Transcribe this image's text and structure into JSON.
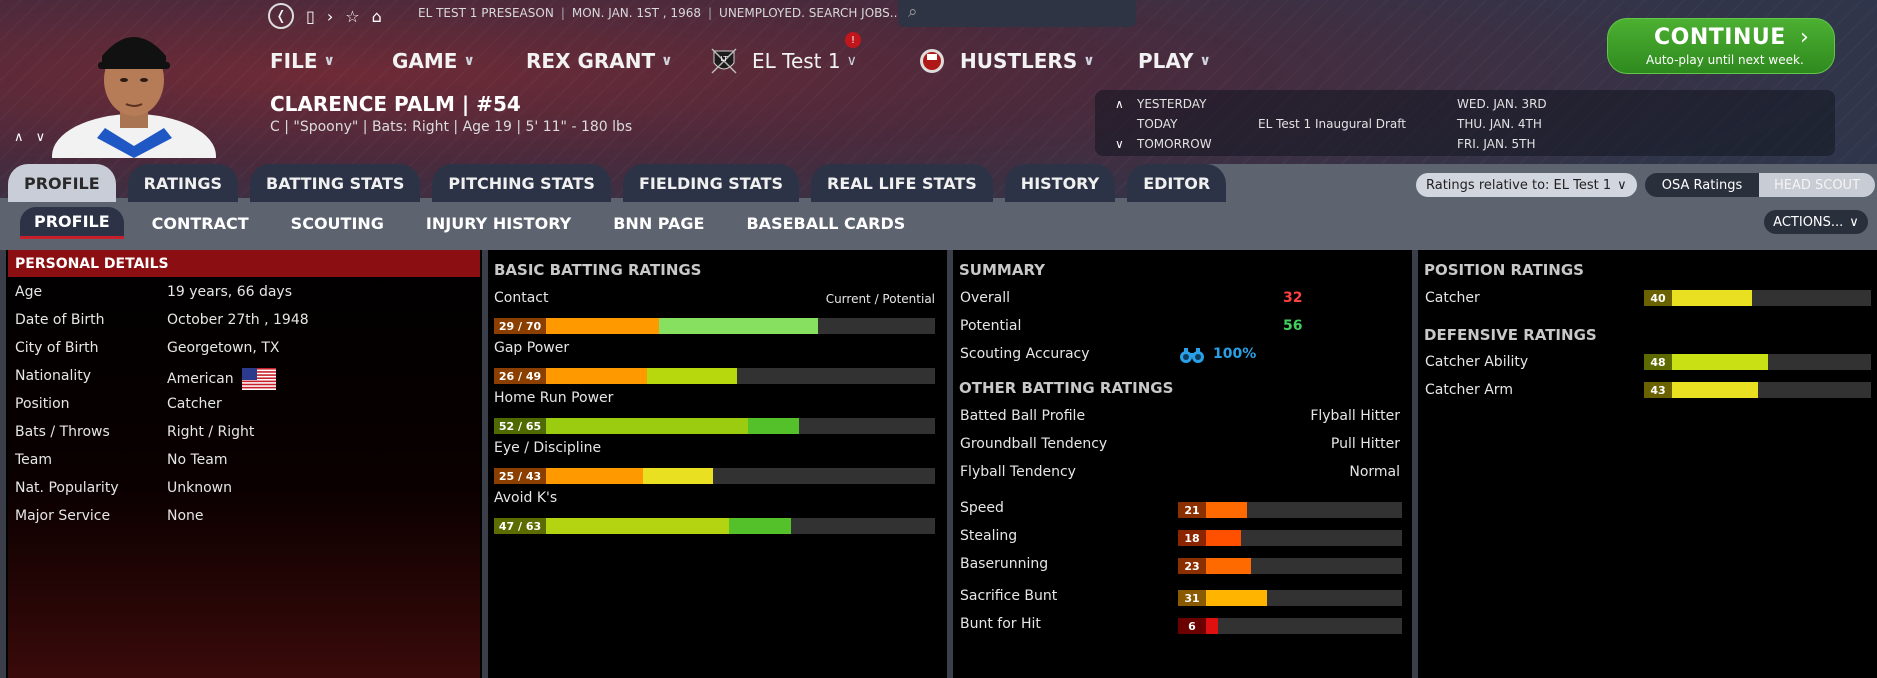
{
  "topbar": {
    "breadcrumb": [
      "EL TEST 1 PRESEASON",
      "MON. JAN. 1ST , 1968",
      "UNEMPLOYED. SEARCH JOBS..."
    ]
  },
  "menu": {
    "file": "FILE",
    "game": "GAME",
    "manager": "REX GRANT",
    "league": "EL Test 1",
    "league_badge": "!",
    "team": "HUSTLERS",
    "play": "PLAY"
  },
  "player": {
    "name_line": "CLARENCE PALM | #54",
    "sub_line": "C | \"Spoony\" | Bats: Right | Age 19 | 5' 11\" - 180 lbs"
  },
  "calendar": {
    "rows": [
      {
        "label": "YESTERDAY",
        "event": "",
        "date": "WED. JAN. 3RD"
      },
      {
        "label": "TODAY",
        "event": "EL Test 1 Inaugural Draft",
        "date": "THU. JAN. 4TH"
      },
      {
        "label": "TOMORROW",
        "event": "",
        "date": "FRI. JAN. 5TH"
      }
    ]
  },
  "continue_button": {
    "label": "CONTINUE",
    "sub": "Auto-play until next week."
  },
  "tabs_main": [
    "PROFILE",
    "RATINGS",
    "BATTING STATS",
    "PITCHING STATS",
    "FIELDING STATS",
    "REAL LIFE STATS",
    "HISTORY",
    "EDITOR"
  ],
  "tabs_sub": [
    "PROFILE",
    "CONTRACT",
    "SCOUTING",
    "INJURY HISTORY",
    "BNN PAGE",
    "BASEBALL CARDS"
  ],
  "controls": {
    "ratings_relative": "Ratings relative to: EL Test 1",
    "osa": "OSA Ratings",
    "head_scout": "HEAD SCOUT",
    "actions": "ACTIONS..."
  },
  "personal_details": {
    "title": "PERSONAL DETAILS",
    "rows": [
      {
        "key": "Age",
        "value": "19 years, 66 days"
      },
      {
        "key": "Date of Birth",
        "value": "October 27th , 1948"
      },
      {
        "key": "City of Birth",
        "value": "Georgetown, TX"
      },
      {
        "key": "Nationality",
        "value": "American"
      },
      {
        "key": "Position",
        "value": "Catcher"
      },
      {
        "key": "Bats / Throws",
        "value": "Right / Right"
      },
      {
        "key": "Team",
        "value": "No Team"
      },
      {
        "key": "Nat. Popularity",
        "value": "Unknown"
      },
      {
        "key": "Major Service",
        "value": "None"
      }
    ]
  },
  "batting": {
    "title": "BASIC BATTING RATINGS",
    "cp_label": "Current / Potential",
    "ratings": [
      {
        "label": "Contact",
        "text": "29 / 70",
        "current": 29,
        "potential": 70,
        "ccolor": "#ff9900",
        "pcolor": "#88e060",
        "tagcolor": "#8a3f00"
      },
      {
        "label": "Gap Power",
        "text": "26 / 49",
        "current": 26,
        "potential": 49,
        "ccolor": "#ff9900",
        "pcolor": "#b6d80c",
        "tagcolor": "#8a3f00"
      },
      {
        "label": "Home Run Power",
        "text": "52 / 65",
        "current": 52,
        "potential": 65,
        "ccolor": "#9ccc10",
        "pcolor": "#55c12a",
        "tagcolor": "#4f6a00"
      },
      {
        "label": "Eye / Discipline",
        "text": "25 / 43",
        "current": 25,
        "potential": 43,
        "ccolor": "#ff9900",
        "pcolor": "#e8e020",
        "tagcolor": "#8a3f00"
      },
      {
        "label": "Avoid K's",
        "text": "47 / 63",
        "current": 47,
        "potential": 63,
        "ccolor": "#b4d412",
        "pcolor": "#55c12a",
        "tagcolor": "#5c6c00"
      }
    ]
  },
  "summary": {
    "title": "SUMMARY",
    "overall_label": "Overall",
    "overall": "32",
    "potential_label": "Potential",
    "potential": "56",
    "scouting_label": "Scouting Accuracy",
    "scouting": "100%"
  },
  "other_batting": {
    "title": "OTHER BATTING RATINGS",
    "rows": [
      {
        "label": "Batted Ball Profile",
        "value": "Flyball Hitter"
      },
      {
        "label": "Groundball Tendency",
        "value": "Pull Hitter"
      },
      {
        "label": "Flyball Tendency",
        "value": "Normal"
      }
    ],
    "bars": [
      {
        "label": "Speed",
        "value": 21,
        "text": "21",
        "color": "#ff6a00",
        "tagcolor": "#8a3000"
      },
      {
        "label": "Stealing",
        "value": 18,
        "text": "18",
        "color": "#ff5000",
        "tagcolor": "#8a2500"
      },
      {
        "label": "Baserunning",
        "value": 23,
        "text": "23",
        "color": "#ff6a00",
        "tagcolor": "#8a3000"
      },
      {
        "label": "Sacrifice Bunt",
        "value": 31,
        "text": "31",
        "color": "#ffb400",
        "tagcolor": "#8a5a00"
      },
      {
        "label": "Bunt for Hit",
        "value": 6,
        "text": "6",
        "color": "#e01010",
        "tagcolor": "#6a0000"
      }
    ]
  },
  "position_ratings": {
    "title": "POSITION RATINGS",
    "rows": [
      {
        "label": "Catcher",
        "value": 40,
        "text": "40",
        "color": "#e8e020",
        "tagcolor": "#6a6200"
      }
    ]
  },
  "defensive_ratings": {
    "title": "DEFENSIVE RATINGS",
    "rows": [
      {
        "label": "Catcher Ability",
        "value": 48,
        "text": "48",
        "color": "#c8e014",
        "tagcolor": "#5c6a00"
      },
      {
        "label": "Catcher Arm",
        "value": 43,
        "text": "43",
        "color": "#e8e020",
        "tagcolor": "#6a6200"
      }
    ]
  }
}
